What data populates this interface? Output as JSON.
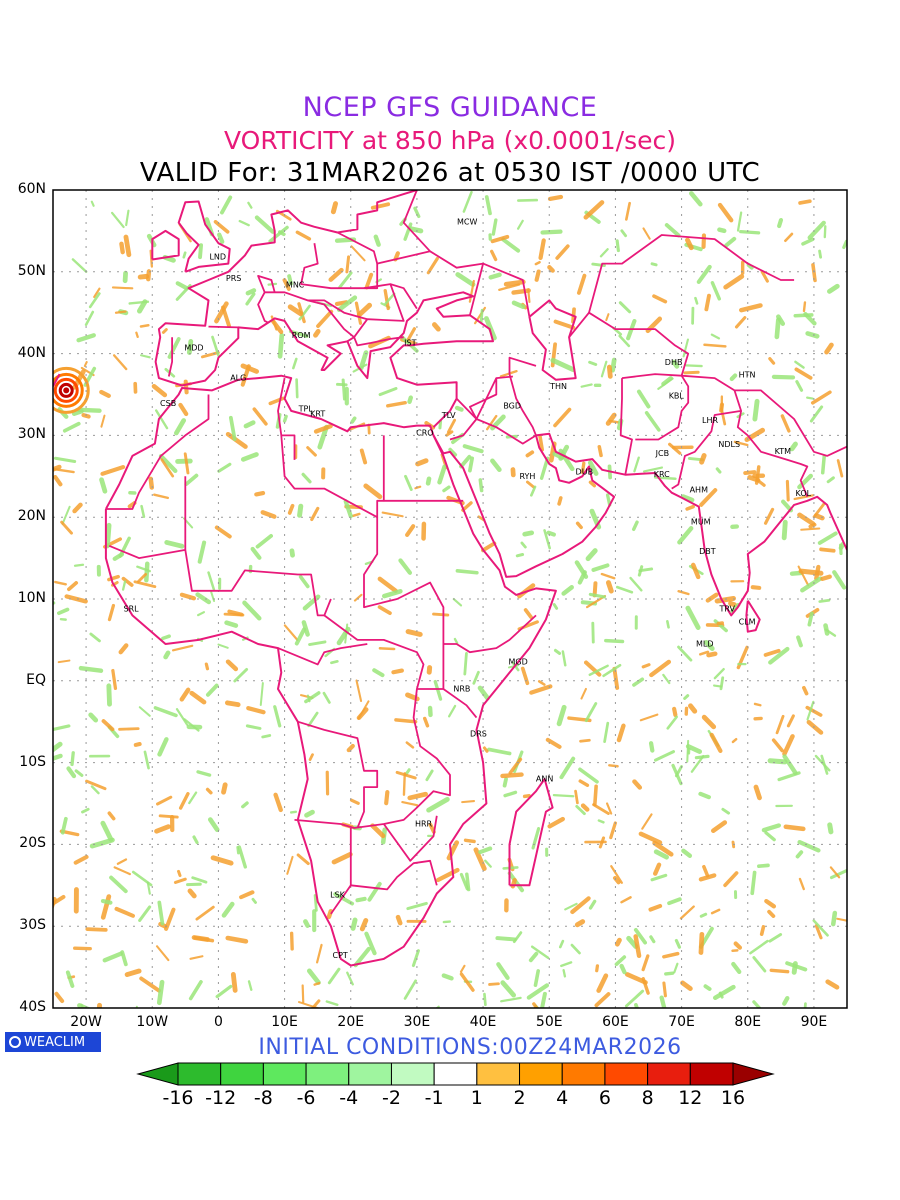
{
  "title_line1": "NCEP GFS GUIDANCE",
  "title_line2": "VORTICITY at 850 hPa (x0.0001/sec)",
  "title_line3": "VALID For: 31MAR2026 at 0530 IST /0000 UTC",
  "initial_conditions": "INITIAL CONDITIONS:00Z24MAR2026",
  "logo_text": "WEACLIM",
  "lat_labels": [
    "60N",
    "50N",
    "40N",
    "30N",
    "20N",
    "10N",
    "EQ",
    "10S",
    "20S",
    "30S",
    "40S"
  ],
  "lon_labels": [
    "20W",
    "10W",
    "0",
    "10E",
    "20E",
    "30E",
    "40E",
    "50E",
    "60E",
    "70E",
    "80E",
    "90E"
  ],
  "cities": [
    {
      "code": "MCW",
      "lon": 37.6,
      "lat": 55.8
    },
    {
      "code": "LND",
      "lon": -0.1,
      "lat": 51.5
    },
    {
      "code": "PRS",
      "lon": 2.3,
      "lat": 48.9
    },
    {
      "code": "MNC",
      "lon": 11.6,
      "lat": 48.1
    },
    {
      "code": "ROM",
      "lon": 12.5,
      "lat": 41.9
    },
    {
      "code": "IST",
      "lon": 29.0,
      "lat": 41.0
    },
    {
      "code": "MDD",
      "lon": -3.7,
      "lat": 40.4
    },
    {
      "code": "ALG",
      "lon": 3.0,
      "lat": 36.7
    },
    {
      "code": "CSB",
      "lon": -7.6,
      "lat": 33.6
    },
    {
      "code": "TPL",
      "lon": 13.2,
      "lat": 32.9
    },
    {
      "code": "KRT",
      "lon": 15.0,
      "lat": 32.3
    },
    {
      "code": "CRO",
      "lon": 31.2,
      "lat": 30.0
    },
    {
      "code": "TLV",
      "lon": 34.8,
      "lat": 32.1
    },
    {
      "code": "BGD",
      "lon": 44.4,
      "lat": 33.3
    },
    {
      "code": "THN",
      "lon": 51.4,
      "lat": 35.7
    },
    {
      "code": "DHB",
      "lon": 68.8,
      "lat": 38.6
    },
    {
      "code": "HTN",
      "lon": 79.9,
      "lat": 37.1
    },
    {
      "code": "KBL",
      "lon": 69.2,
      "lat": 34.5
    },
    {
      "code": "LHR",
      "lon": 74.3,
      "lat": 31.5
    },
    {
      "code": "JCB",
      "lon": 67.1,
      "lat": 27.5
    },
    {
      "code": "NDLS",
      "lon": 77.2,
      "lat": 28.6
    },
    {
      "code": "KTM",
      "lon": 85.3,
      "lat": 27.7
    },
    {
      "code": "RYH",
      "lon": 46.7,
      "lat": 24.7
    },
    {
      "code": "DUB",
      "lon": 55.3,
      "lat": 25.2
    },
    {
      "code": "KRC",
      "lon": 67.0,
      "lat": 24.9
    },
    {
      "code": "AHM",
      "lon": 72.6,
      "lat": 23.0
    },
    {
      "code": "KOL",
      "lon": 88.4,
      "lat": 22.6
    },
    {
      "code": "MUM",
      "lon": 72.9,
      "lat": 19.1
    },
    {
      "code": "DBT",
      "lon": 73.9,
      "lat": 15.5
    },
    {
      "code": "TRV",
      "lon": 76.9,
      "lat": 8.5
    },
    {
      "code": "CLM",
      "lon": 79.9,
      "lat": 6.9
    },
    {
      "code": "MLD",
      "lon": 73.5,
      "lat": 4.2
    },
    {
      "code": "SRL",
      "lon": -13.2,
      "lat": 8.5
    },
    {
      "code": "MGD",
      "lon": 45.3,
      "lat": 2.0
    },
    {
      "code": "NRB",
      "lon": 36.8,
      "lat": -1.3
    },
    {
      "code": "DRS",
      "lon": 39.3,
      "lat": -6.8
    },
    {
      "code": "ANN",
      "lon": 49.3,
      "lat": -12.3
    },
    {
      "code": "HRR",
      "lon": 31.0,
      "lat": -17.8
    },
    {
      "code": "LSK",
      "lon": 18.0,
      "lat": -26.5
    },
    {
      "code": "CPT",
      "lon": 18.4,
      "lat": -33.9
    }
  ],
  "colorbar": {
    "labels": [
      "-16",
      "-12",
      "-8",
      "-6",
      "-4",
      "-2",
      "-1",
      "1",
      "2",
      "4",
      "6",
      "8",
      "12",
      "16"
    ],
    "colors": [
      "#1a9a1a",
      "#2dbb2d",
      "#3fd43f",
      "#5ee85e",
      "#7ef07e",
      "#9ff59f",
      "#c1fac1",
      "#ffffff",
      "#ffc040",
      "#ffa000",
      "#ff7a00",
      "#ff4a00",
      "#e81e0e",
      "#c00000",
      "#9a0000"
    ]
  },
  "colors": {
    "border": "#e8197a",
    "grid": "#9a9a9a",
    "positive": "#f5a030",
    "negative": "#9be67a"
  }
}
